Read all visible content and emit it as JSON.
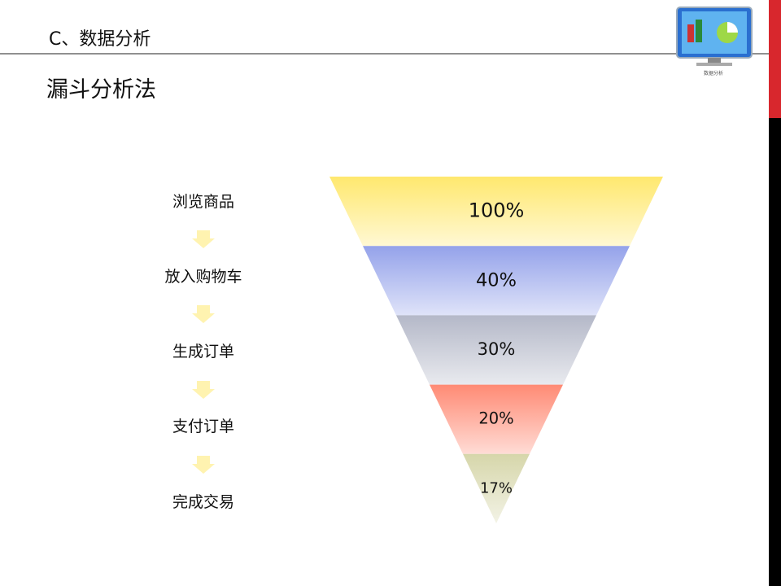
{
  "header": {
    "section": "C、数据分析",
    "title": "漏斗分析法",
    "logo_text": "数据分析"
  },
  "chart_data": {
    "type": "funnel",
    "categories": [
      "浏览商品",
      "放入购物车",
      "生成订单",
      "支付订单",
      "完成交易"
    ],
    "values": [
      100,
      40,
      30,
      20,
      17
    ],
    "value_labels": [
      "100%",
      "40%",
      "30%",
      "20%",
      "17%"
    ],
    "colors": [
      "#ffe86e",
      "#94a2ea",
      "#b4b8c8",
      "#ff8a74",
      "#d6d6aa"
    ]
  }
}
